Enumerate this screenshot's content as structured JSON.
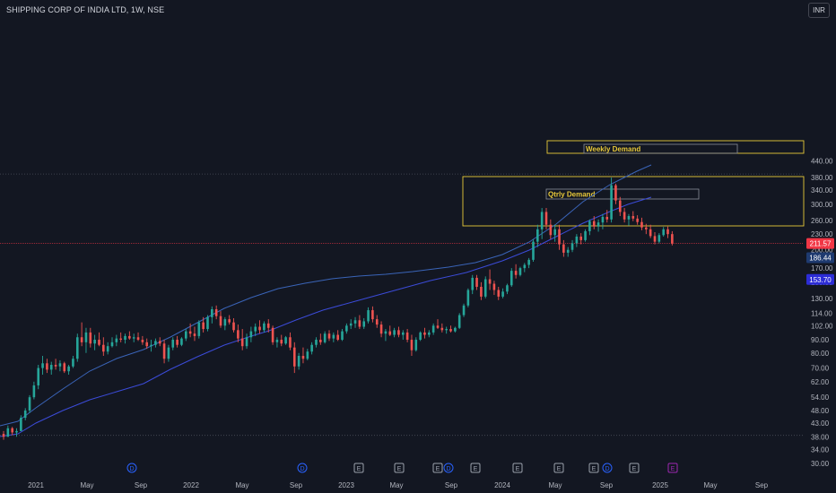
{
  "header": {
    "title": "SHIPPING CORP OF INDIA LTD, 1W, NSE",
    "currency": "INR"
  },
  "chart_data": {
    "type": "candlestick",
    "y_scale": "log",
    "y_ticks": [
      "440.00",
      "380.00",
      "340.00",
      "300.00",
      "260.00",
      "230.00",
      "200.00",
      "170.00",
      "150.00",
      "130.00",
      "114.00",
      "102.00",
      "90.00",
      "80.00",
      "70.00",
      "62.00",
      "54.00",
      "48.00",
      "43.00",
      "38.00",
      "34.00",
      "30.00"
    ],
    "x_ticks": [
      "2021",
      "May",
      "Sep",
      "2022",
      "May",
      "Sep",
      "2023",
      "May",
      "Sep",
      "2024",
      "May",
      "Sep",
      "2025",
      "May",
      "Sep"
    ],
    "price_labels": [
      {
        "text": "211.57",
        "value": 211.57,
        "color": "#f23645"
      },
      {
        "text": "186.44",
        "value": 186.44,
        "color": "#1e3a70"
      },
      {
        "text": "153.70",
        "value": 153.7,
        "color": "#2c2cd6"
      }
    ],
    "annotations": [
      {
        "label": "Weekly Demand",
        "color": "#e8c93a"
      },
      {
        "label": "Qtrly Demand",
        "color": "#e8c93a"
      }
    ],
    "event_markers": [
      "D",
      "D",
      "E",
      "E",
      "E",
      "D",
      "E",
      "E",
      "E",
      "E",
      "D",
      "E",
      "E"
    ],
    "candles": [
      [
        39,
        40,
        37,
        38
      ],
      [
        38,
        42,
        38,
        41
      ],
      [
        41,
        41.5,
        38.5,
        39.5
      ],
      [
        39.5,
        41,
        38,
        40
      ],
      [
        40,
        46,
        40,
        45
      ],
      [
        45,
        49,
        44,
        48
      ],
      [
        48,
        55,
        47,
        54
      ],
      [
        54,
        62,
        53,
        60
      ],
      [
        60,
        72,
        58,
        70
      ],
      [
        70,
        78,
        66,
        73
      ],
      [
        73,
        76,
        67,
        69
      ],
      [
        69,
        74,
        66,
        72
      ],
      [
        72,
        76,
        69,
        71
      ],
      [
        71,
        75,
        68,
        73
      ],
      [
        73,
        74,
        67,
        68
      ],
      [
        68,
        72,
        66,
        71
      ],
      [
        71,
        78,
        70,
        76
      ],
      [
        76,
        95,
        74,
        92
      ],
      [
        92,
        105,
        85,
        88
      ],
      [
        88,
        100,
        80,
        96
      ],
      [
        96,
        100,
        84,
        87
      ],
      [
        87,
        94,
        82,
        90
      ],
      [
        90,
        96,
        85,
        86
      ],
      [
        86,
        92,
        78,
        81
      ],
      [
        81,
        88,
        79,
        85
      ],
      [
        85,
        92,
        84,
        88
      ],
      [
        88,
        94,
        85,
        91
      ],
      [
        91,
        96,
        88,
        90
      ],
      [
        90,
        95,
        87,
        93
      ],
      [
        93,
        97,
        90,
        91
      ],
      [
        91,
        95,
        88,
        92
      ],
      [
        92,
        96,
        89,
        90
      ],
      [
        90,
        93,
        86,
        88
      ],
      [
        88,
        91,
        83,
        85
      ],
      [
        85,
        90,
        81,
        86
      ],
      [
        86,
        91,
        84,
        89
      ],
      [
        89,
        92,
        85,
        87
      ],
      [
        87,
        90,
        73,
        76
      ],
      [
        76,
        86,
        74,
        84
      ],
      [
        84,
        92,
        82,
        90
      ],
      [
        90,
        93,
        84,
        86
      ],
      [
        86,
        92,
        85,
        91
      ],
      [
        91,
        99,
        89,
        97
      ],
      [
        97,
        104,
        92,
        95
      ],
      [
        95,
        101,
        89,
        93
      ],
      [
        93,
        107,
        91,
        105
      ],
      [
        105,
        110,
        96,
        99
      ],
      [
        99,
        112,
        97,
        110
      ],
      [
        110,
        121,
        104,
        118
      ],
      [
        118,
        122,
        108,
        111
      ],
      [
        111,
        116,
        100,
        102
      ],
      [
        102,
        110,
        98,
        108
      ],
      [
        108,
        112,
        103,
        105
      ],
      [
        105,
        109,
        96,
        98
      ],
      [
        98,
        103,
        88,
        91
      ],
      [
        91,
        99,
        82,
        85
      ],
      [
        85,
        95,
        83,
        92
      ],
      [
        92,
        101,
        88,
        97
      ],
      [
        97,
        104,
        93,
        101
      ],
      [
        101,
        107,
        95,
        98
      ],
      [
        98,
        106,
        96,
        104
      ],
      [
        104,
        108,
        96,
        100
      ],
      [
        100,
        102,
        86,
        88
      ],
      [
        88,
        92,
        84,
        90
      ],
      [
        90,
        94,
        85,
        87
      ],
      [
        87,
        93,
        86,
        92
      ],
      [
        92,
        96,
        82,
        84
      ],
      [
        84,
        88,
        67,
        71
      ],
      [
        71,
        80,
        69,
        78
      ],
      [
        78,
        84,
        73,
        76
      ],
      [
        76,
        83,
        75,
        81
      ],
      [
        81,
        88,
        79,
        86
      ],
      [
        86,
        92,
        84,
        90
      ],
      [
        90,
        95,
        86,
        88
      ],
      [
        88,
        97,
        87,
        95
      ],
      [
        95,
        98,
        89,
        91
      ],
      [
        91,
        96,
        88,
        94
      ],
      [
        94,
        98,
        89,
        90
      ],
      [
        90,
        99,
        89,
        97
      ],
      [
        97,
        104,
        95,
        102
      ],
      [
        102,
        108,
        99,
        104
      ],
      [
        104,
        110,
        100,
        107
      ],
      [
        107,
        112,
        99,
        101
      ],
      [
        101,
        109,
        99,
        106
      ],
      [
        106,
        120,
        104,
        117
      ],
      [
        117,
        121,
        105,
        108
      ],
      [
        108,
        112,
        100,
        103
      ],
      [
        103,
        106,
        92,
        95
      ],
      [
        95,
        99,
        89,
        97
      ],
      [
        97,
        102,
        93,
        94
      ],
      [
        94,
        100,
        92,
        98
      ],
      [
        98,
        101,
        92,
        94
      ],
      [
        94,
        98,
        90,
        96
      ],
      [
        96,
        99,
        88,
        90
      ],
      [
        90,
        94,
        78,
        82
      ],
      [
        82,
        92,
        81,
        90
      ],
      [
        90,
        97,
        89,
        96
      ],
      [
        96,
        100,
        91,
        94
      ],
      [
        94,
        98,
        92,
        96
      ],
      [
        96,
        104,
        94,
        102
      ],
      [
        102,
        108,
        99,
        100
      ],
      [
        100,
        104,
        96,
        98
      ],
      [
        98,
        101,
        95,
        99
      ],
      [
        99,
        102,
        96,
        97
      ],
      [
        97,
        101,
        96,
        100
      ],
      [
        100,
        114,
        99,
        112
      ],
      [
        112,
        124,
        110,
        122
      ],
      [
        122,
        142,
        120,
        140
      ],
      [
        140,
        160,
        135,
        156
      ],
      [
        156,
        160,
        140,
        144
      ],
      [
        144,
        150,
        128,
        132
      ],
      [
        132,
        158,
        130,
        154
      ],
      [
        154,
        168,
        140,
        148
      ],
      [
        148,
        152,
        134,
        140
      ],
      [
        140,
        144,
        128,
        132
      ],
      [
        132,
        142,
        130,
        138
      ],
      [
        138,
        148,
        135,
        146
      ],
      [
        146,
        170,
        144,
        166
      ],
      [
        166,
        176,
        155,
        160
      ],
      [
        160,
        172,
        158,
        170
      ],
      [
        170,
        178,
        164,
        175
      ],
      [
        175,
        186,
        170,
        183
      ],
      [
        183,
        220,
        180,
        215
      ],
      [
        215,
        250,
        205,
        240
      ],
      [
        240,
        290,
        220,
        280
      ],
      [
        280,
        290,
        240,
        250
      ],
      [
        250,
        262,
        220,
        228
      ],
      [
        228,
        250,
        215,
        240
      ],
      [
        240,
        250,
        200,
        210
      ],
      [
        210,
        218,
        188,
        195
      ],
      [
        195,
        205,
        188,
        200
      ],
      [
        200,
        218,
        196,
        212
      ],
      [
        212,
        230,
        205,
        225
      ],
      [
        225,
        232,
        210,
        218
      ],
      [
        218,
        240,
        215,
        236
      ],
      [
        236,
        262,
        228,
        258
      ],
      [
        258,
        270,
        240,
        246
      ],
      [
        246,
        262,
        235,
        255
      ],
      [
        255,
        275,
        240,
        268
      ],
      [
        268,
        285,
        255,
        262
      ],
      [
        262,
        380,
        255,
        355
      ],
      [
        355,
        360,
        300,
        310
      ],
      [
        310,
        320,
        270,
        280
      ],
      [
        280,
        290,
        255,
        262
      ],
      [
        262,
        275,
        248,
        270
      ],
      [
        270,
        282,
        258,
        264
      ],
      [
        264,
        272,
        250,
        256
      ],
      [
        256,
        266,
        238,
        244
      ],
      [
        244,
        252,
        230,
        240
      ],
      [
        240,
        250,
        222,
        226
      ],
      [
        226,
        234,
        210,
        215
      ],
      [
        215,
        232,
        212,
        228
      ],
      [
        228,
        245,
        225,
        240
      ],
      [
        240,
        246,
        222,
        230
      ],
      [
        230,
        236,
        208,
        212
      ]
    ]
  }
}
